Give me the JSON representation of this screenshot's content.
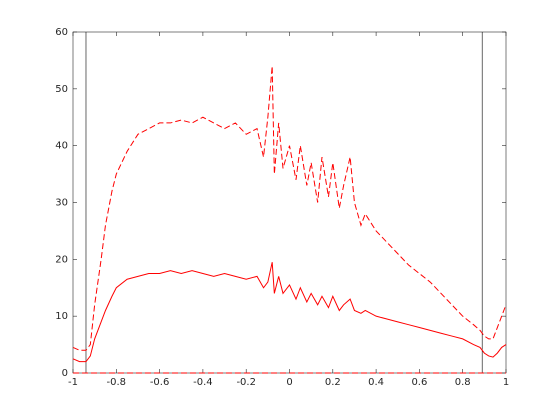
{
  "chart_data": {
    "type": "line",
    "xlim": [
      -1,
      1
    ],
    "xticks": [
      -1,
      -0.8,
      -0.6,
      -0.4,
      -0.2,
      0,
      0.2,
      0.4,
      0.6,
      0.8,
      1
    ],
    "ylim": [
      0,
      60
    ],
    "yticks": [
      0,
      10,
      20,
      30,
      40,
      50,
      60
    ],
    "vlines": [
      -0.94,
      0.89
    ],
    "vline_color": "#000000",
    "series": [
      {
        "color": "#ff0000",
        "dash": true,
        "x": [
          -1,
          -0.97,
          -0.94,
          -0.92,
          -0.9,
          -0.87,
          -0.85,
          -0.82,
          -0.8,
          -0.75,
          -0.7,
          -0.65,
          -0.6,
          -0.55,
          -0.5,
          -0.45,
          -0.4,
          -0.35,
          -0.3,
          -0.25,
          -0.2,
          -0.15,
          -0.12,
          -0.1,
          -0.08,
          -0.07,
          -0.05,
          -0.03,
          0,
          0.03,
          0.05,
          0.08,
          0.1,
          0.13,
          0.15,
          0.18,
          0.2,
          0.23,
          0.25,
          0.28,
          0.3,
          0.33,
          0.35,
          0.4,
          0.45,
          0.5,
          0.55,
          0.6,
          0.65,
          0.7,
          0.75,
          0.8,
          0.85,
          0.88,
          0.9,
          0.92,
          0.94,
          0.96,
          0.98,
          1
        ],
        "values": [
          4.5,
          4,
          4,
          5,
          12,
          20,
          26,
          32,
          35,
          39,
          42,
          43,
          44,
          44,
          44.5,
          44,
          45,
          44,
          43,
          44,
          42,
          43,
          38,
          45,
          54,
          35,
          44,
          36,
          40,
          34,
          40,
          33,
          37,
          30,
          38,
          31,
          37,
          29,
          33,
          38,
          30,
          26,
          28,
          25,
          23,
          21,
          19,
          17.5,
          16,
          14,
          12,
          10,
          8.5,
          7.5,
          6.5,
          6,
          6,
          8,
          10,
          12
        ]
      },
      {
        "color": "#ff0000",
        "dash": false,
        "x": [
          -1,
          -0.97,
          -0.94,
          -0.92,
          -0.9,
          -0.87,
          -0.85,
          -0.82,
          -0.8,
          -0.75,
          -0.7,
          -0.65,
          -0.6,
          -0.55,
          -0.5,
          -0.45,
          -0.4,
          -0.35,
          -0.3,
          -0.25,
          -0.2,
          -0.15,
          -0.12,
          -0.1,
          -0.08,
          -0.07,
          -0.05,
          -0.03,
          0,
          0.03,
          0.05,
          0.08,
          0.1,
          0.13,
          0.15,
          0.18,
          0.2,
          0.23,
          0.25,
          0.28,
          0.3,
          0.33,
          0.35,
          0.4,
          0.45,
          0.5,
          0.55,
          0.6,
          0.65,
          0.7,
          0.75,
          0.8,
          0.85,
          0.88,
          0.9,
          0.92,
          0.94,
          0.96,
          0.98,
          1
        ],
        "values": [
          2.5,
          2,
          2,
          3,
          6,
          9,
          11,
          13.5,
          15,
          16.5,
          17,
          17.5,
          17.5,
          18,
          17.5,
          18,
          17.5,
          17,
          17.5,
          17,
          16.5,
          17,
          15,
          16,
          19.5,
          14,
          17,
          14,
          15.5,
          13,
          15,
          12.5,
          14,
          12,
          13.5,
          11.5,
          13.5,
          11,
          12,
          13,
          11,
          10.5,
          11,
          10,
          9.5,
          9,
          8.5,
          8,
          7.5,
          7,
          6.5,
          6,
          5,
          4.5,
          3.5,
          3,
          2.8,
          3.5,
          4.5,
          5
        ]
      },
      {
        "color": "#ff0000",
        "dash": true,
        "x": [
          -1,
          1
        ],
        "values": [
          0,
          0
        ]
      }
    ]
  }
}
